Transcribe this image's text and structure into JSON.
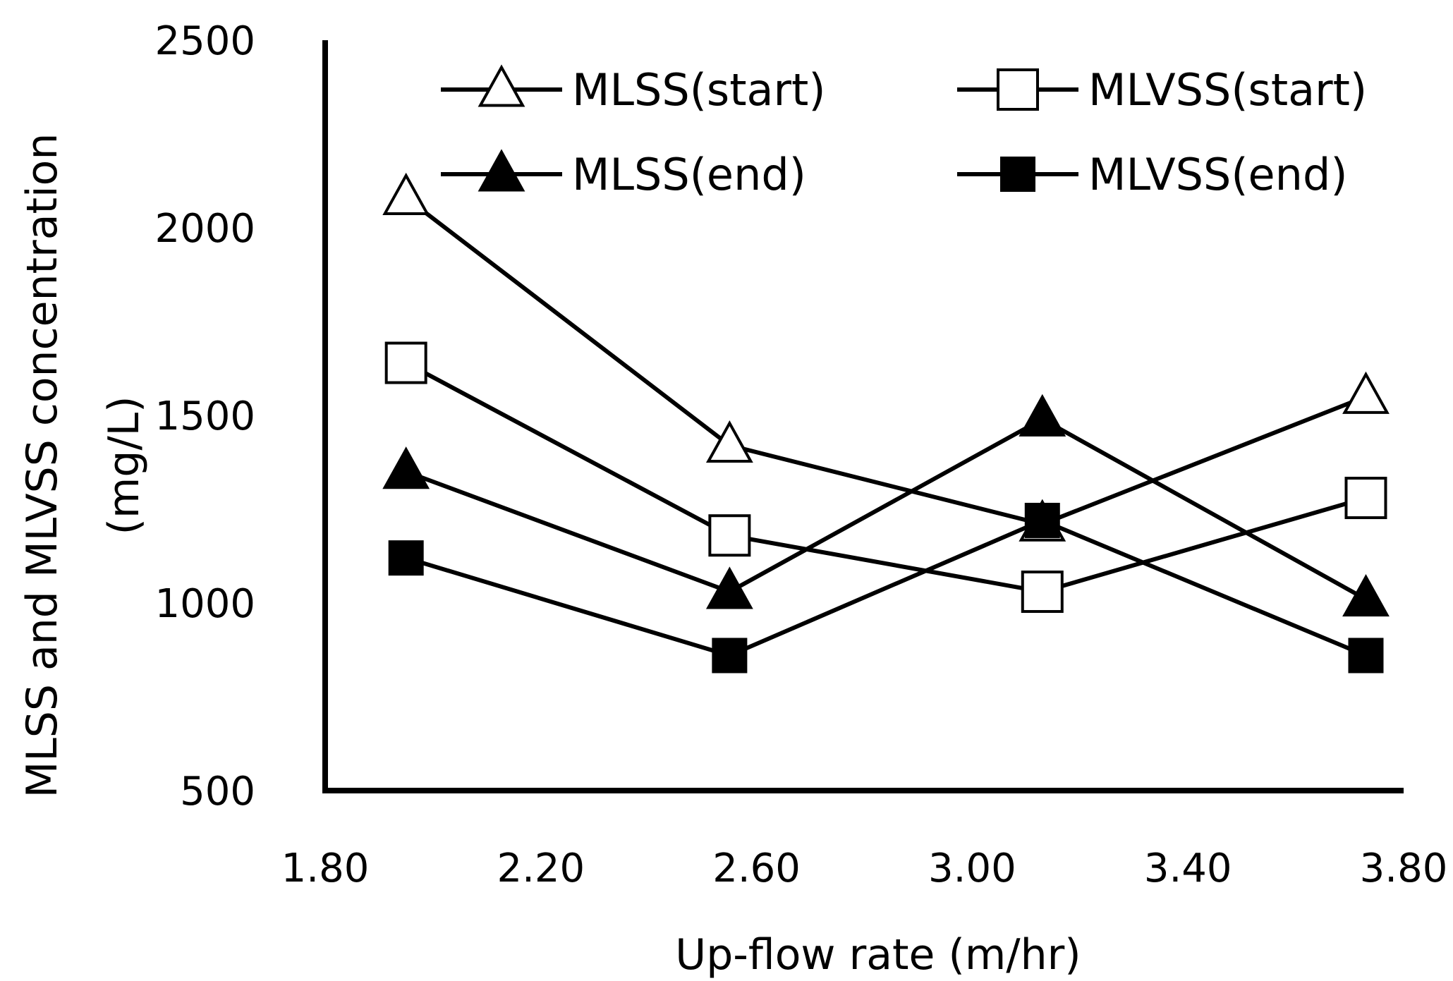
{
  "chart_data": {
    "type": "line",
    "title": "",
    "xlabel": "Up-flow rate (m/hr)",
    "ylabel_line1": "MLSS and MLVSS concentration",
    "ylabel_line2": "(mg/L)",
    "xlim": [
      1.8,
      3.8
    ],
    "ylim": [
      500,
      2500
    ],
    "x_ticks": [
      "1.80",
      "2.20",
      "2.60",
      "3.00",
      "3.40",
      "3.80"
    ],
    "y_ticks": [
      "500",
      "1000",
      "1500",
      "2000",
      "2500"
    ],
    "grid": false,
    "legend_position": "top",
    "x": [
      1.95,
      2.55,
      3.13,
      3.73
    ],
    "series": [
      {
        "name": "MLSS(start)",
        "marker": "triangle-open",
        "values": [
          2080,
          1420,
          1210,
          1550
        ]
      },
      {
        "name": "MLVSS(start)",
        "marker": "square-open",
        "values": [
          1640,
          1180,
          1030,
          1280
        ]
      },
      {
        "name": "MLSS(end)",
        "marker": "triangle-filled",
        "values": [
          1350,
          1030,
          1490,
          1010
        ]
      },
      {
        "name": "MLVSS(end)",
        "marker": "square-filled",
        "values": [
          1120,
          860,
          1220,
          860
        ]
      }
    ]
  }
}
